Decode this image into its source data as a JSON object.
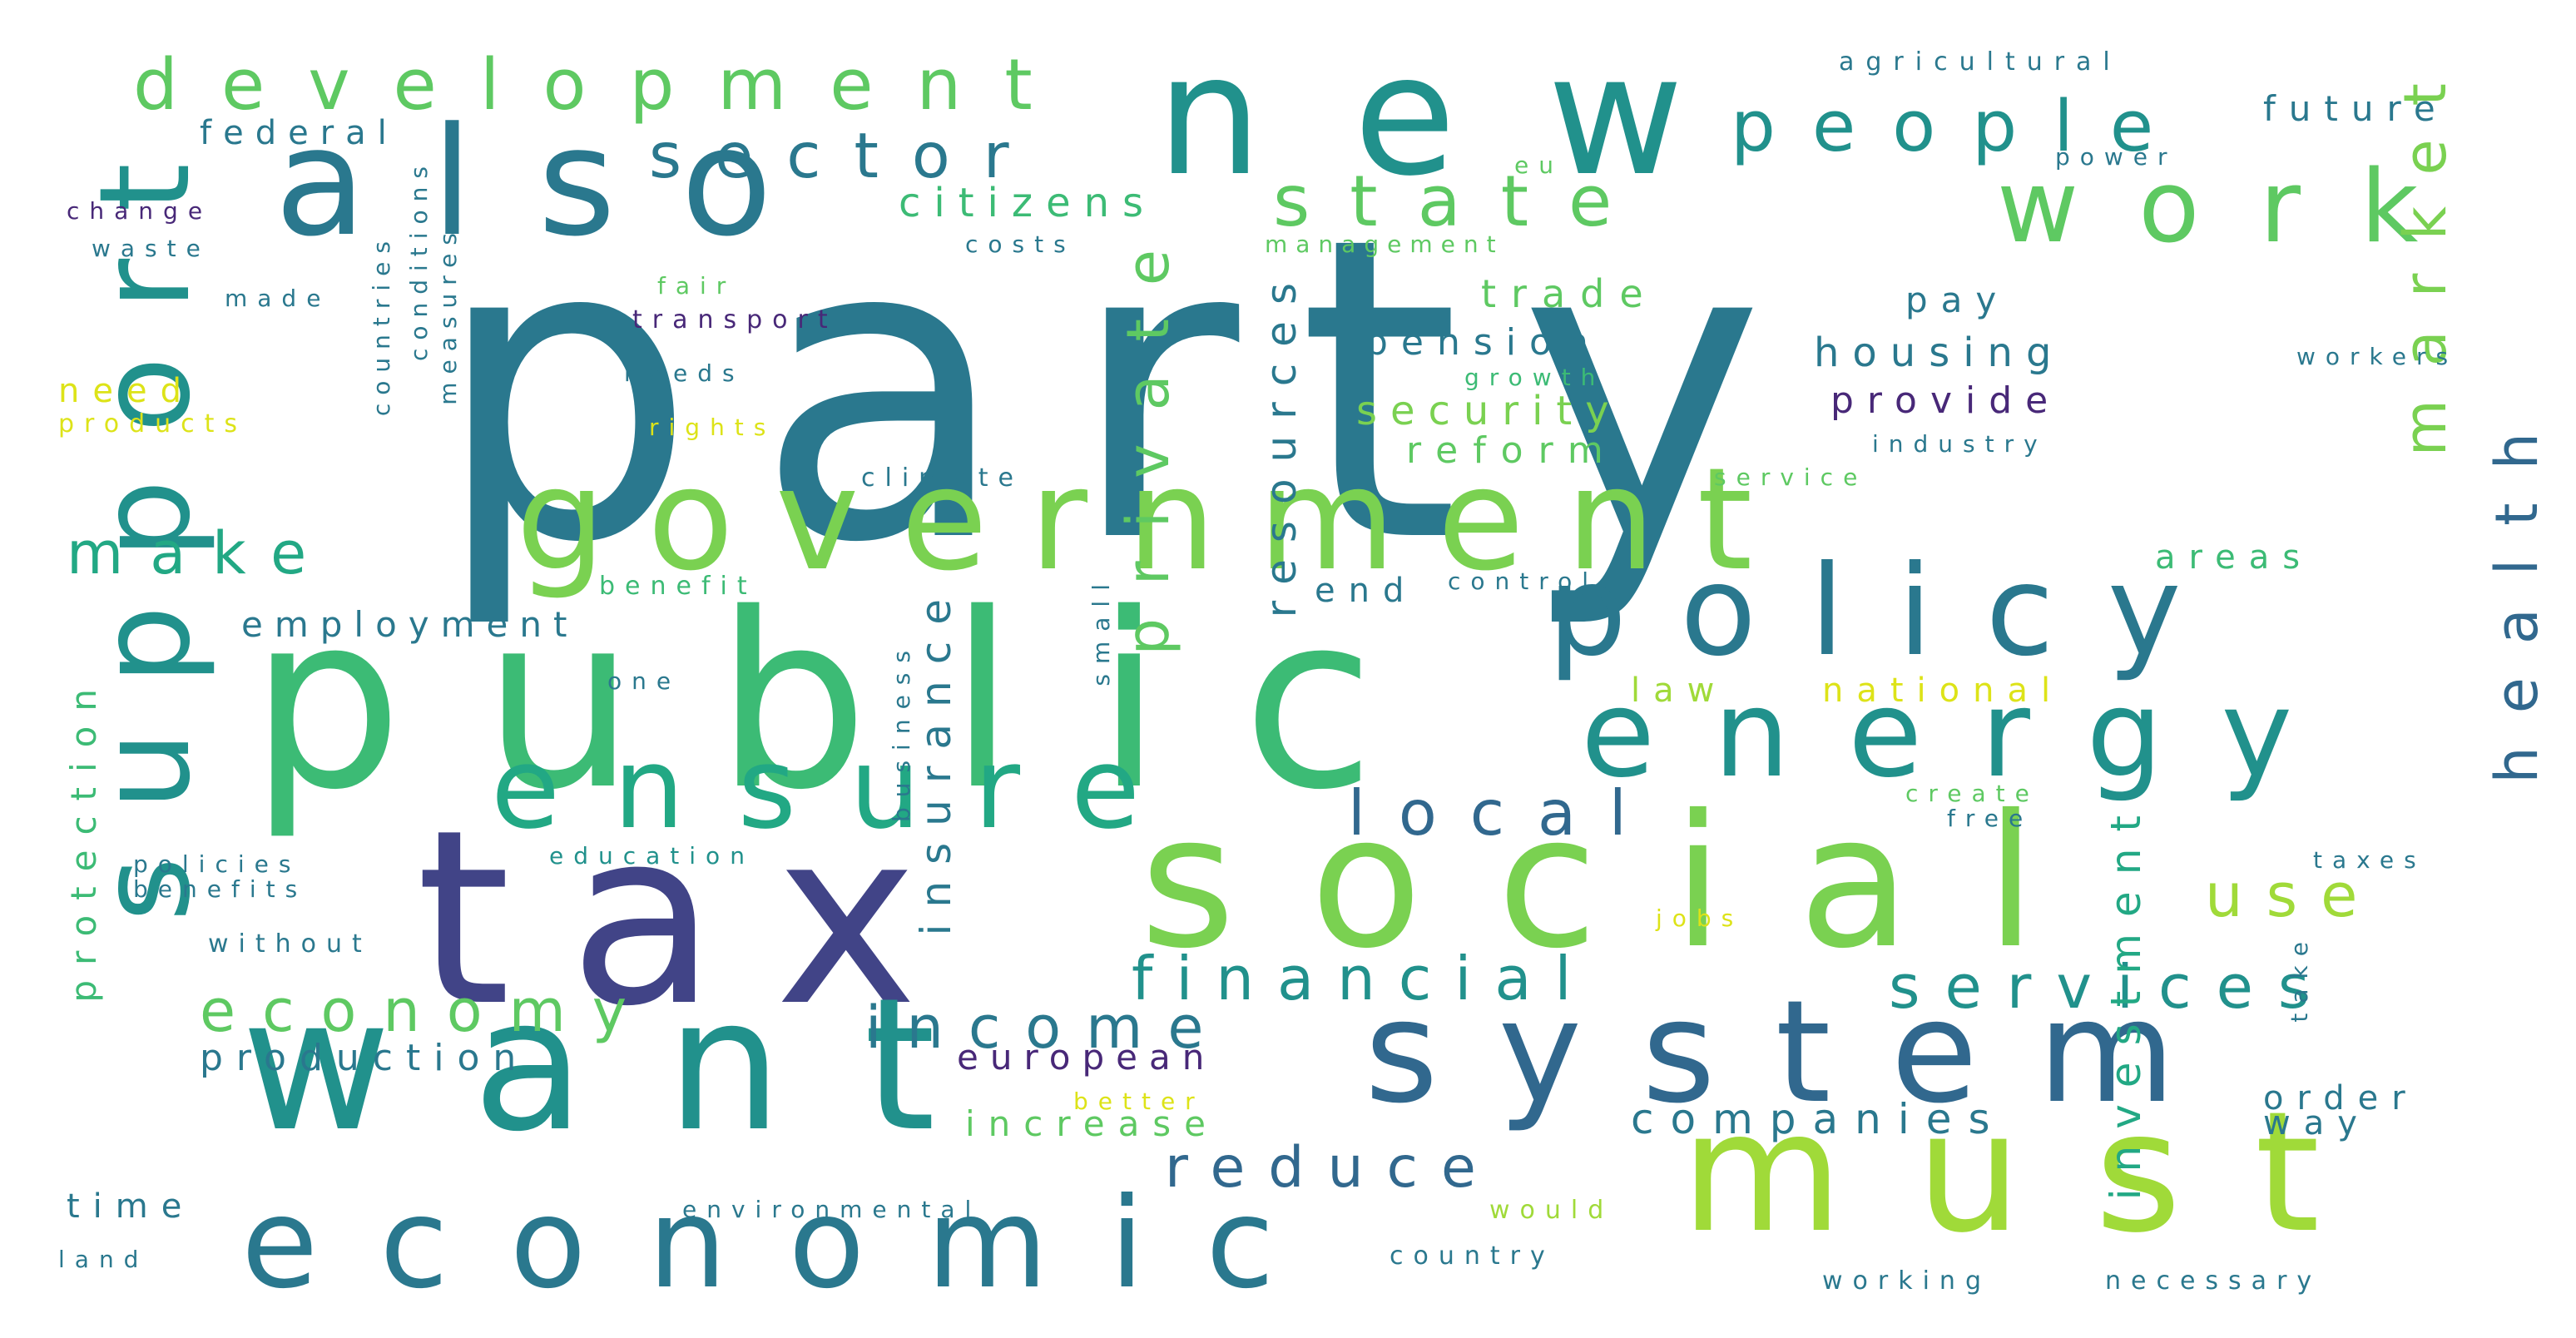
{
  "words": [
    {
      "text": "party",
      "color": "#2a788e"
    },
    {
      "text": "public",
      "color": "#3cbb75"
    },
    {
      "text": "tax",
      "color": "#414487"
    },
    {
      "text": "want",
      "color": "#21918c"
    },
    {
      "text": "social",
      "color": "#7ad151"
    },
    {
      "text": "government",
      "color": "#7ad151"
    },
    {
      "text": "also",
      "color": "#2a788e"
    },
    {
      "text": "new",
      "color": "#21918c"
    },
    {
      "text": "must",
      "color": "#a0da39"
    },
    {
      "text": "system",
      "color": "#31688e"
    },
    {
      "text": "economic",
      "color": "#2a788e"
    },
    {
      "text": "support",
      "color": "#21918c"
    },
    {
      "text": "ensure",
      "color": "#22a884"
    },
    {
      "text": "energy",
      "color": "#21918c"
    },
    {
      "text": "policy",
      "color": "#2a788e"
    },
    {
      "text": "work",
      "color": "#5ec962"
    },
    {
      "text": "development",
      "color": "#5ec962"
    },
    {
      "text": "people",
      "color": "#21918c"
    },
    {
      "text": "state",
      "color": "#5ec962"
    },
    {
      "text": "sector",
      "color": "#2a788e"
    },
    {
      "text": "financial",
      "color": "#21918c"
    },
    {
      "text": "services",
      "color": "#21918c"
    },
    {
      "text": "economy",
      "color": "#5ec962"
    },
    {
      "text": "local",
      "color": "#31688e"
    },
    {
      "text": "income",
      "color": "#2a788e"
    },
    {
      "text": "private",
      "color": "#5ec962"
    },
    {
      "text": "market",
      "color": "#7ad151"
    },
    {
      "text": "health",
      "color": "#31688e"
    },
    {
      "text": "make",
      "color": "#22a884"
    },
    {
      "text": "reduce",
      "color": "#31688e"
    },
    {
      "text": "use",
      "color": "#a0da39"
    },
    {
      "text": "companies",
      "color": "#2a788e"
    },
    {
      "text": "resources",
      "color": "#2a788e"
    },
    {
      "text": "insurance",
      "color": "#2a788e"
    },
    {
      "text": "investment",
      "color": "#22a884"
    },
    {
      "text": "protection",
      "color": "#3cbb75"
    },
    {
      "text": "citizens",
      "color": "#3cbb75"
    },
    {
      "text": "security",
      "color": "#7ad151"
    },
    {
      "text": "housing",
      "color": "#2a788e"
    },
    {
      "text": "pension",
      "color": "#2a788e"
    },
    {
      "text": "provide",
      "color": "#482878"
    },
    {
      "text": "trade",
      "color": "#5ec962"
    },
    {
      "text": "reform",
      "color": "#5ec962"
    },
    {
      "text": "employment",
      "color": "#2a788e"
    },
    {
      "text": "production",
      "color": "#2a788e"
    },
    {
      "text": "european",
      "color": "#482878"
    },
    {
      "text": "increase",
      "color": "#5ec962"
    },
    {
      "text": "federal",
      "color": "#2a788e"
    },
    {
      "text": "future",
      "color": "#2a788e"
    },
    {
      "text": "pay",
      "color": "#2a788e"
    },
    {
      "text": "law",
      "color": "#a0da39"
    },
    {
      "text": "national",
      "color": "#dde318"
    },
    {
      "text": "areas",
      "color": "#3cbb75"
    },
    {
      "text": "order",
      "color": "#2a788e"
    },
    {
      "text": "way",
      "color": "#2a788e"
    },
    {
      "text": "time",
      "color": "#2a788e"
    },
    {
      "text": "need",
      "color": "#dde318"
    },
    {
      "text": "end",
      "color": "#2a788e"
    },
    {
      "text": "agricultural",
      "color": "#2a788e"
    },
    {
      "text": "change",
      "color": "#482878"
    },
    {
      "text": "waste",
      "color": "#2a788e"
    },
    {
      "text": "made",
      "color": "#2a788e"
    },
    {
      "text": "products",
      "color": "#dde318"
    },
    {
      "text": "countries",
      "color": "#2a788e"
    },
    {
      "text": "conditions",
      "color": "#2a788e"
    },
    {
      "text": "measures",
      "color": "#2a788e"
    },
    {
      "text": "fair",
      "color": "#5ec962"
    },
    {
      "text": "transport",
      "color": "#482878"
    },
    {
      "text": "needs",
      "color": "#2a788e"
    },
    {
      "text": "rights",
      "color": "#dde318"
    },
    {
      "text": "climate",
      "color": "#2a788e"
    },
    {
      "text": "benefit",
      "color": "#3cbb75"
    },
    {
      "text": "one",
      "color": "#2a788e"
    },
    {
      "text": "education",
      "color": "#21918c"
    },
    {
      "text": "policies",
      "color": "#2a788e"
    },
    {
      "text": "benefits",
      "color": "#2a788e"
    },
    {
      "text": "without",
      "color": "#2a788e"
    },
    {
      "text": "business",
      "color": "#2a788e"
    },
    {
      "text": "small",
      "color": "#2a788e"
    },
    {
      "text": "costs",
      "color": "#2a788e"
    },
    {
      "text": "management",
      "color": "#5ec962"
    },
    {
      "text": "eu",
      "color": "#5ec962"
    },
    {
      "text": "power",
      "color": "#2a788e"
    },
    {
      "text": "growth",
      "color": "#3cbb75"
    },
    {
      "text": "industry",
      "color": "#2a788e"
    },
    {
      "text": "service",
      "color": "#5ec962"
    },
    {
      "text": "control",
      "color": "#2a788e"
    },
    {
      "text": "workers",
      "color": "#2a788e"
    },
    {
      "text": "create",
      "color": "#5ec962"
    },
    {
      "text": "free",
      "color": "#2a788e"
    },
    {
      "text": "taxes",
      "color": "#2a788e"
    },
    {
      "text": "jobs",
      "color": "#dde318"
    },
    {
      "text": "take",
      "color": "#2a788e"
    },
    {
      "text": "better",
      "color": "#dde318"
    },
    {
      "text": "environmental",
      "color": "#2a788e"
    },
    {
      "text": "would",
      "color": "#a0da39"
    },
    {
      "text": "country",
      "color": "#2a788e"
    },
    {
      "text": "land",
      "color": "#2a788e"
    },
    {
      "text": "working",
      "color": "#2a788e"
    },
    {
      "text": "necessary",
      "color": "#2a788e"
    }
  ]
}
